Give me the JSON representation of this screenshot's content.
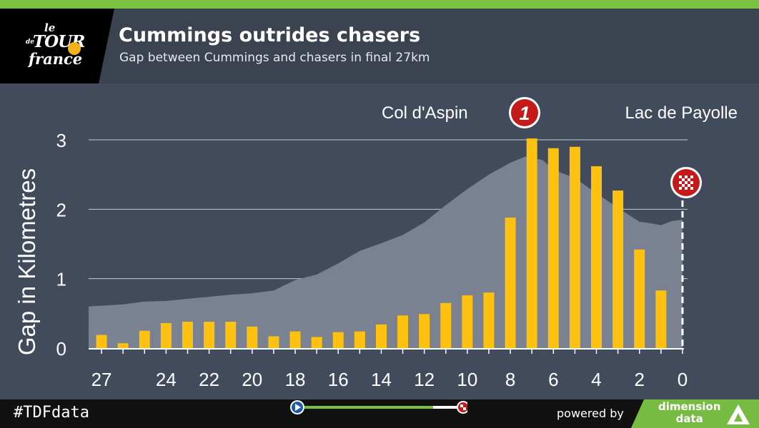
{
  "header": {
    "title": "Cummings outrides chasers",
    "subtitle": "Gap between Cummings and chasers in final 27km",
    "logo_le": "le",
    "logo_tour": "TOUR",
    "logo_de": "de",
    "logo_france": "france"
  },
  "colors": {
    "bar": "#fec10f",
    "elevation": "#7a8291",
    "grid": "#c8ccd4",
    "accent_green": "#7ac142",
    "marker_red": "#c41a1a"
  },
  "chart_data": {
    "type": "bar",
    "ylabel": "Gap in Kilometres",
    "ylim": [
      0,
      3.35
    ],
    "yticks": [
      "0",
      "1",
      "2",
      "3"
    ],
    "xlim": [
      27.6,
      -0.5
    ],
    "xticks": [
      "27",
      "24",
      "22",
      "20",
      "18",
      "16",
      "14",
      "12",
      "10",
      "8",
      "6",
      "4",
      "2",
      "0"
    ],
    "grid": "horizontal",
    "annotations": {
      "climb_label": "Col d'Aspin",
      "climb_category": "1",
      "finish_label": "Lac de Payolle"
    },
    "x": [
      27,
      26,
      25,
      24,
      23,
      22,
      21,
      20,
      19,
      18,
      17,
      16,
      15,
      14,
      13,
      12,
      11,
      10,
      9,
      8,
      7,
      6,
      5,
      4,
      3,
      2,
      1,
      0
    ],
    "values": [
      0.19,
      0.07,
      0.25,
      0.36,
      0.38,
      0.38,
      0.38,
      0.31,
      0.17,
      0.24,
      0.16,
      0.23,
      0.24,
      0.34,
      0.47,
      0.49,
      0.65,
      0.76,
      0.8,
      1.88,
      3.02,
      2.88,
      2.9,
      2.62,
      2.27,
      1.42,
      0.83,
      0
    ],
    "elevation_profile": {
      "x": [
        27.6,
        26,
        25,
        24,
        23,
        22,
        21,
        20,
        19,
        18,
        17,
        16,
        15,
        14,
        13,
        12,
        11,
        10,
        9,
        8,
        7.3,
        7,
        6.5,
        6,
        5,
        4,
        3,
        2,
        1.5,
        1,
        0.5,
        0
      ],
      "values": [
        0.6,
        0.63,
        0.67,
        0.68,
        0.71,
        0.74,
        0.77,
        0.79,
        0.83,
        0.98,
        1.06,
        1.22,
        1.4,
        1.51,
        1.63,
        1.81,
        2.06,
        2.29,
        2.5,
        2.67,
        2.76,
        2.74,
        2.71,
        2.57,
        2.45,
        2.23,
        2.02,
        1.82,
        1.8,
        1.77,
        1.83,
        1.85
      ]
    }
  },
  "footer": {
    "hashtag": "#TDFdata",
    "powered_by": "powered by",
    "brand_line1": "dimension",
    "brand_line2": "data"
  }
}
